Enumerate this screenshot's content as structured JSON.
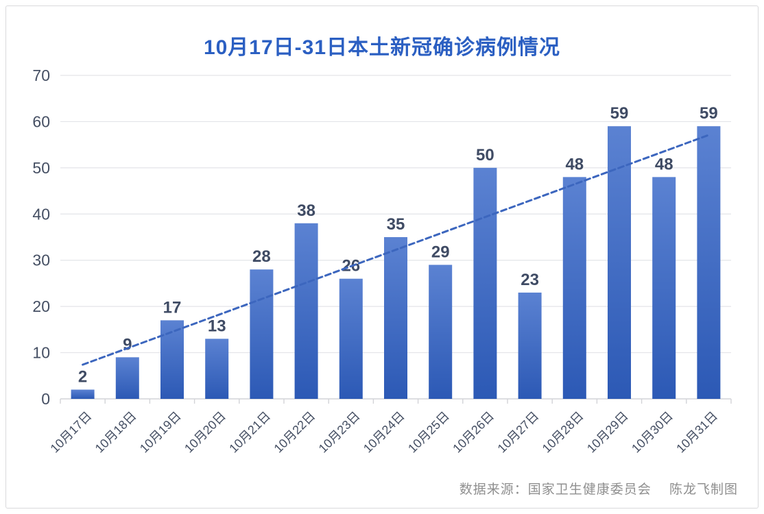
{
  "chart_data": {
    "type": "bar",
    "title": "10月17日-31日本土新冠确诊病例情况",
    "categories": [
      "10月17日",
      "10月18日",
      "10月19日",
      "10月20日",
      "10月21日",
      "10月22日",
      "10月23日",
      "10月24日",
      "10月25日",
      "10月26日",
      "10月27日",
      "10月28日",
      "10月29日",
      "10月30日",
      "10月31日"
    ],
    "values": [
      2,
      9,
      17,
      13,
      28,
      38,
      26,
      35,
      29,
      50,
      23,
      48,
      59,
      48,
      59
    ],
    "data_labels": [
      "2",
      "9",
      "17",
      "13",
      "28",
      "38",
      "26",
      "35",
      "29",
      "50",
      "23",
      "48",
      "59",
      "48",
      "59"
    ],
    "xlabel": "",
    "ylabel": "",
    "ylim": [
      0,
      70
    ],
    "ytick_step": 10,
    "yticks": [
      "0",
      "10",
      "20",
      "30",
      "40",
      "50",
      "60",
      "70"
    ],
    "grid": true,
    "legend_position": "none",
    "trendline": {
      "type": "linear",
      "dashed": true,
      "start_value": 7.4,
      "end_value": 57.1
    }
  },
  "footer": {
    "source_note": "数据来源：国家卫生健康委员会　 陈龙飞制图"
  },
  "colors": {
    "title": "#2b5fc2",
    "bar_top": "#5b82d2",
    "bar_bottom": "#2c59b5",
    "trendline": "#3c66be",
    "data_label": "#3f4b64",
    "axis_label": "#454f63",
    "gridline": "#e3e4e8",
    "axis_line": "#d2d3d7",
    "source_text": "#8f8f8f",
    "frame_border": "#d9d9dc"
  }
}
